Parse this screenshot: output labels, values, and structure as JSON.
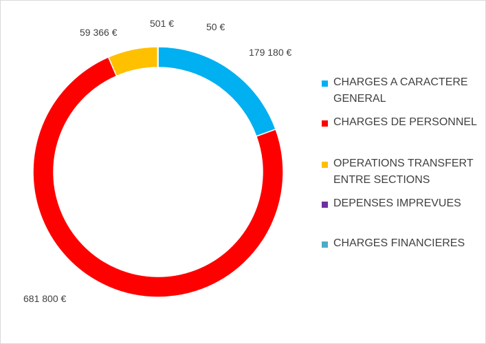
{
  "chart_data": {
    "type": "pie",
    "variant": "donut",
    "title": "",
    "legend_position": "right",
    "series": [
      {
        "name": "CHARGES A CARACTERE GENERAL",
        "value": 179180,
        "label": "179 180 €",
        "color": "#00b0f0"
      },
      {
        "name": "CHARGES DE PERSONNEL",
        "value": 681800,
        "label": "681 800 €",
        "color": "#ff0000"
      },
      {
        "name": "OPERATIONS TRANSFERT ENTRE SECTIONS",
        "value": 59366,
        "label": "59 366 €",
        "color": "#ffc000"
      },
      {
        "name": "DEPENSES IMPREVUES",
        "value": 501,
        "label": "501 €",
        "color": "#7030a0"
      },
      {
        "name": "CHARGES FINANCIERES",
        "value": 50,
        "label": "50 €",
        "color": "#4bacc6"
      }
    ]
  }
}
